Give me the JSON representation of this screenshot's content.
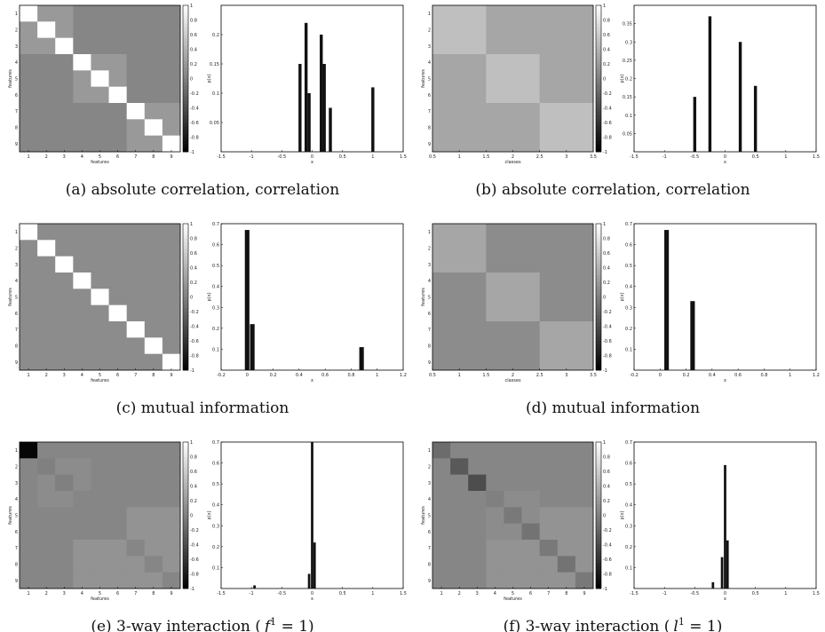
{
  "chart_data": [
    {
      "panel": "a",
      "caption": "(a) absolute correlation, correlation",
      "heatmap": {
        "type": "heatmap",
        "n": 9,
        "xlabel": "features",
        "ylabel": "features",
        "x_ticks": [
          "1",
          "2",
          "3",
          "4",
          "5",
          "6",
          "7",
          "8",
          "9"
        ],
        "y_ticks": [
          "1",
          "2",
          "3",
          "4",
          "5",
          "6",
          "7",
          "8",
          "9"
        ],
        "colorbar_ticks": [
          "1",
          "0.8",
          "0.6",
          "0.4",
          "0.2",
          "0",
          "-0.2",
          "-0.4",
          "-0.6",
          "-0.8",
          "-1"
        ],
        "clim": [
          -1,
          1
        ],
        "values": [
          [
            1,
            0.2,
            0.2,
            0.05,
            0.05,
            0.05,
            0.05,
            0.05,
            0.05
          ],
          [
            0.2,
            1,
            0.2,
            0.05,
            0.05,
            0.05,
            0.05,
            0.05,
            0.05
          ],
          [
            0.2,
            0.2,
            1,
            0.05,
            0.05,
            0.05,
            0.05,
            0.05,
            0.05
          ],
          [
            0.05,
            0.05,
            0.05,
            1,
            0.2,
            0.2,
            0.05,
            0.05,
            0.05
          ],
          [
            0.05,
            0.05,
            0.05,
            0.2,
            1,
            0.2,
            0.05,
            0.05,
            0.05
          ],
          [
            0.05,
            0.05,
            0.05,
            0.2,
            0.2,
            1,
            0.05,
            0.05,
            0.05
          ],
          [
            0.05,
            0.05,
            0.05,
            0.05,
            0.05,
            0.05,
            1,
            0.2,
            0.2
          ],
          [
            0.05,
            0.05,
            0.05,
            0.05,
            0.05,
            0.05,
            0.2,
            1,
            0.2
          ],
          [
            0.05,
            0.05,
            0.05,
            0.05,
            0.05,
            0.05,
            0.2,
            0.2,
            1
          ]
        ]
      },
      "histogram": {
        "type": "bar",
        "xlabel": "x",
        "ylabel": "p(x)",
        "xlim": [
          -1.5,
          1.5
        ],
        "ylim": [
          0,
          0.25
        ],
        "x_ticks": [
          "-1.5",
          "-1",
          "-0.5",
          "0",
          "0.5",
          "1",
          "1.5"
        ],
        "y_ticks": [
          "0.05",
          "0.1",
          "0.15",
          "0.2"
        ],
        "bar_width": 0.05,
        "x": [
          -0.2,
          -0.1,
          -0.05,
          0.15,
          0.2,
          0.3,
          1.0
        ],
        "values": [
          0.15,
          0.22,
          0.1,
          0.2,
          0.15,
          0.075,
          0.11
        ]
      }
    },
    {
      "panel": "b",
      "caption": "(b) absolute correlation, correlation",
      "heatmap": {
        "type": "heatmap",
        "n": 9,
        "xlabel": "classes",
        "ylabel": "features",
        "x_ticks": [
          "0.5",
          "1",
          "1.5",
          "2",
          "2.5",
          "3",
          "3.5"
        ],
        "y_ticks": [
          "1",
          "2",
          "3",
          "4",
          "5",
          "6",
          "7",
          "8",
          "9"
        ],
        "colorbar_ticks": [
          "1",
          "0.8",
          "0.6",
          "0.4",
          "0.2",
          "0",
          "-0.2",
          "-0.4",
          "-0.6",
          "-0.8",
          "-1"
        ],
        "clim": [
          -1,
          1
        ],
        "values": [
          [
            0.5,
            0.5,
            0.5,
            0.3,
            0.3,
            0.3,
            0.3,
            0.3,
            0.3
          ],
          [
            0.5,
            0.5,
            0.5,
            0.3,
            0.3,
            0.3,
            0.3,
            0.3,
            0.3
          ],
          [
            0.5,
            0.5,
            0.5,
            0.3,
            0.3,
            0.3,
            0.3,
            0.3,
            0.3
          ],
          [
            0.3,
            0.3,
            0.3,
            0.5,
            0.5,
            0.5,
            0.3,
            0.3,
            0.3
          ],
          [
            0.3,
            0.3,
            0.3,
            0.5,
            0.5,
            0.5,
            0.3,
            0.3,
            0.3
          ],
          [
            0.3,
            0.3,
            0.3,
            0.5,
            0.5,
            0.5,
            0.3,
            0.3,
            0.3
          ],
          [
            0.3,
            0.3,
            0.3,
            0.3,
            0.3,
            0.3,
            0.5,
            0.5,
            0.5
          ],
          [
            0.3,
            0.3,
            0.3,
            0.3,
            0.3,
            0.3,
            0.5,
            0.5,
            0.5
          ],
          [
            0.3,
            0.3,
            0.3,
            0.3,
            0.3,
            0.3,
            0.5,
            0.5,
            0.5
          ]
        ]
      },
      "histogram": {
        "type": "bar",
        "xlabel": "x",
        "ylabel": "p(x)",
        "xlim": [
          -1.5,
          1.5
        ],
        "ylim": [
          0,
          0.4
        ],
        "x_ticks": [
          "-1.5",
          "-1",
          "-0.5",
          "0",
          "0.5",
          "1",
          "1.5"
        ],
        "y_ticks": [
          "0.05",
          "0.1",
          "0.15",
          "0.2",
          "0.25",
          "0.3",
          "0.35"
        ],
        "bar_width": 0.05,
        "x": [
          -0.5,
          -0.25,
          0.25,
          0.5
        ],
        "values": [
          0.15,
          0.37,
          0.3,
          0.18
        ]
      }
    },
    {
      "panel": "c",
      "caption": "(c) mutual information",
      "heatmap": {
        "type": "heatmap",
        "n": 9,
        "xlabel": "features",
        "ylabel": "features",
        "x_ticks": [
          "1",
          "2",
          "3",
          "4",
          "5",
          "6",
          "7",
          "8",
          "9"
        ],
        "y_ticks": [
          "1",
          "2",
          "3",
          "4",
          "5",
          "6",
          "7",
          "8",
          "9"
        ],
        "colorbar_ticks": [
          "1",
          "0.8",
          "0.6",
          "0.4",
          "0.2",
          "0",
          "-0.2",
          "-0.4",
          "-0.6",
          "-0.8",
          "-1"
        ],
        "clim": [
          -1,
          1
        ],
        "values": [
          [
            1,
            0.1,
            0.1,
            0.1,
            0.1,
            0.1,
            0.1,
            0.1,
            0.1
          ],
          [
            0.1,
            1,
            0.1,
            0.1,
            0.1,
            0.1,
            0.1,
            0.1,
            0.1
          ],
          [
            0.1,
            0.1,
            1,
            0.1,
            0.1,
            0.1,
            0.1,
            0.1,
            0.1
          ],
          [
            0.1,
            0.1,
            0.1,
            1,
            0.1,
            0.1,
            0.1,
            0.1,
            0.1
          ],
          [
            0.1,
            0.1,
            0.1,
            0.1,
            1,
            0.1,
            0.1,
            0.1,
            0.1
          ],
          [
            0.1,
            0.1,
            0.1,
            0.1,
            0.1,
            1,
            0.1,
            0.1,
            0.1
          ],
          [
            0.1,
            0.1,
            0.1,
            0.1,
            0.1,
            0.1,
            1,
            0.1,
            0.1
          ],
          [
            0.1,
            0.1,
            0.1,
            0.1,
            0.1,
            0.1,
            0.1,
            1,
            0.1
          ],
          [
            0.1,
            0.1,
            0.1,
            0.1,
            0.1,
            0.1,
            0.1,
            0.1,
            1
          ]
        ]
      },
      "histogram": {
        "type": "bar",
        "xlabel": "x",
        "ylabel": "p(x)",
        "xlim": [
          -0.2,
          1.2
        ],
        "ylim": [
          0,
          0.7
        ],
        "x_ticks": [
          "-0.2",
          "0",
          "0.2",
          "0.4",
          "0.6",
          "0.8",
          "1",
          "1.2"
        ],
        "y_ticks": [
          "0.1",
          "0.2",
          "0.3",
          "0.4",
          "0.5",
          "0.6",
          "0.7"
        ],
        "bar_width": 0.035,
        "x": [
          0.0,
          0.04,
          0.88
        ],
        "values": [
          0.67,
          0.22,
          0.11
        ]
      }
    },
    {
      "panel": "d",
      "caption": "(d) mutual information",
      "heatmap": {
        "type": "heatmap",
        "n": 9,
        "xlabel": "classes",
        "ylabel": "features",
        "x_ticks": [
          "0.5",
          "1",
          "1.5",
          "2",
          "2.5",
          "3",
          "3.5"
        ],
        "y_ticks": [
          "1",
          "2",
          "3",
          "4",
          "5",
          "6",
          "7",
          "8",
          "9"
        ],
        "colorbar_ticks": [
          "1",
          "0.8",
          "0.6",
          "0.4",
          "0.2",
          "0",
          "-0.2",
          "-0.4",
          "-0.6",
          "-0.8",
          "-1"
        ],
        "clim": [
          -1,
          1
        ],
        "values": [
          [
            0.3,
            0.3,
            0.3,
            0.1,
            0.1,
            0.1,
            0.1,
            0.1,
            0.1
          ],
          [
            0.3,
            0.3,
            0.3,
            0.1,
            0.1,
            0.1,
            0.1,
            0.1,
            0.1
          ],
          [
            0.3,
            0.3,
            0.3,
            0.1,
            0.1,
            0.1,
            0.1,
            0.1,
            0.1
          ],
          [
            0.1,
            0.1,
            0.1,
            0.3,
            0.3,
            0.3,
            0.1,
            0.1,
            0.1
          ],
          [
            0.1,
            0.1,
            0.1,
            0.3,
            0.3,
            0.3,
            0.1,
            0.1,
            0.1
          ],
          [
            0.1,
            0.1,
            0.1,
            0.3,
            0.3,
            0.3,
            0.1,
            0.1,
            0.1
          ],
          [
            0.1,
            0.1,
            0.1,
            0.1,
            0.1,
            0.1,
            0.3,
            0.3,
            0.3
          ],
          [
            0.1,
            0.1,
            0.1,
            0.1,
            0.1,
            0.1,
            0.3,
            0.3,
            0.3
          ],
          [
            0.1,
            0.1,
            0.1,
            0.1,
            0.1,
            0.1,
            0.3,
            0.3,
            0.3
          ]
        ]
      },
      "histogram": {
        "type": "bar",
        "xlabel": "x",
        "ylabel": "p(x)",
        "xlim": [
          -0.2,
          1.2
        ],
        "ylim": [
          0,
          0.7
        ],
        "x_ticks": [
          "-0.2",
          "0",
          "0.2",
          "0.4",
          "0.6",
          "0.8",
          "1",
          "1.2"
        ],
        "y_ticks": [
          "0.1",
          "0.2",
          "0.3",
          "0.4",
          "0.5",
          "0.6",
          "0.7"
        ],
        "bar_width": 0.035,
        "x": [
          0.05,
          0.25
        ],
        "values": [
          0.67,
          0.33
        ]
      }
    },
    {
      "panel": "e",
      "caption": "(e) 3-way interaction (",
      "caption_italic": "f",
      "caption_sup": "1",
      "caption_tail": " = 1)",
      "heatmap": {
        "type": "heatmap",
        "n": 9,
        "xlabel": "features",
        "ylabel": "features",
        "x_ticks": [
          "1",
          "2",
          "3",
          "4",
          "5",
          "6",
          "7",
          "8",
          "9"
        ],
        "y_ticks": [
          "1",
          "2",
          "3",
          "4",
          "5",
          "6",
          "7",
          "8",
          "9"
        ],
        "colorbar_ticks": [
          "1",
          "0.8",
          "0.6",
          "0.4",
          "0.2",
          "0",
          "-0.2",
          "-0.4",
          "-0.6",
          "-0.8",
          "-1"
        ],
        "clim": [
          -1,
          1
        ],
        "values": [
          [
            -0.95,
            0.05,
            0.05,
            0.05,
            0.05,
            0.05,
            0.05,
            0.05,
            0.05
          ],
          [
            0.05,
            0.0,
            0.1,
            0.1,
            0.05,
            0.05,
            0.05,
            0.05,
            0.05
          ],
          [
            0.05,
            0.1,
            0.0,
            0.1,
            0.05,
            0.05,
            0.05,
            0.05,
            0.05
          ],
          [
            0.05,
            0.1,
            0.1,
            0.05,
            0.05,
            0.05,
            0.05,
            0.05,
            0.05
          ],
          [
            0.05,
            0.05,
            0.05,
            0.05,
            0.05,
            0.05,
            0.15,
            0.15,
            0.15
          ],
          [
            0.05,
            0.05,
            0.05,
            0.05,
            0.05,
            0.05,
            0.15,
            0.15,
            0.15
          ],
          [
            0.05,
            0.05,
            0.05,
            0.15,
            0.15,
            0.15,
            0.05,
            0.15,
            0.15
          ],
          [
            0.05,
            0.05,
            0.05,
            0.15,
            0.15,
            0.15,
            0.15,
            0.05,
            0.15
          ],
          [
            0.05,
            0.05,
            0.05,
            0.15,
            0.15,
            0.15,
            0.15,
            0.15,
            0.05
          ]
        ]
      },
      "histogram": {
        "type": "bar",
        "xlabel": "x",
        "ylabel": "p(x)",
        "xlim": [
          -1.5,
          1.5
        ],
        "ylim": [
          0,
          0.7
        ],
        "x_ticks": [
          "-1.5",
          "-1",
          "-0.5",
          "0",
          "0.5",
          "1",
          "1.5"
        ],
        "y_ticks": [
          "0.1",
          "0.2",
          "0.3",
          "0.4",
          "0.5",
          "0.6",
          "0.7"
        ],
        "bar_width": 0.04,
        "x": [
          -0.95,
          -0.05,
          0.0,
          0.04
        ],
        "values": [
          0.015,
          0.07,
          0.7,
          0.22
        ]
      }
    },
    {
      "panel": "f",
      "caption": "(f) 3-way interaction (",
      "caption_italic": "l",
      "caption_sup": "1",
      "caption_tail": " = 1)",
      "heatmap": {
        "type": "heatmap",
        "n": 9,
        "xlabel": "features",
        "ylabel": "features",
        "x_ticks": [
          "1",
          "2",
          "3",
          "4",
          "5",
          "6",
          "7",
          "8",
          "9"
        ],
        "y_ticks": [
          "1",
          "2",
          "3",
          "4",
          "5",
          "6",
          "7",
          "8",
          "9"
        ],
        "colorbar_ticks": [
          "1",
          "0.8",
          "0.6",
          "0.4",
          "0.2",
          "0",
          "-0.2",
          "-0.4",
          "-0.6",
          "-0.8",
          "-1"
        ],
        "clim": [
          -1,
          1
        ],
        "values": [
          [
            -0.15,
            0.05,
            0.05,
            0.05,
            0.05,
            0.05,
            0.05,
            0.05,
            0.05
          ],
          [
            0.05,
            -0.3,
            0.05,
            0.05,
            0.05,
            0.05,
            0.05,
            0.05,
            0.05
          ],
          [
            0.05,
            0.05,
            -0.4,
            0.05,
            0.05,
            0.05,
            0.05,
            0.05,
            0.05
          ],
          [
            0.05,
            0.05,
            0.05,
            0.0,
            0.1,
            0.1,
            0.05,
            0.05,
            0.05
          ],
          [
            0.05,
            0.05,
            0.05,
            0.1,
            -0.05,
            0.1,
            0.15,
            0.15,
            0.15
          ],
          [
            0.05,
            0.05,
            0.05,
            0.1,
            0.1,
            -0.1,
            0.15,
            0.15,
            0.15
          ],
          [
            0.05,
            0.05,
            0.05,
            0.15,
            0.15,
            0.15,
            -0.05,
            0.15,
            0.15
          ],
          [
            0.05,
            0.05,
            0.05,
            0.15,
            0.15,
            0.15,
            0.15,
            -0.1,
            0.15
          ],
          [
            0.05,
            0.05,
            0.05,
            0.15,
            0.15,
            0.15,
            0.15,
            0.15,
            -0.05
          ]
        ]
      },
      "histogram": {
        "type": "bar",
        "xlabel": "x",
        "ylabel": "p(x)",
        "xlim": [
          -1.5,
          1.5
        ],
        "ylim": [
          0,
          0.7
        ],
        "x_ticks": [
          "-1.5",
          "-1",
          "-0.5",
          "0",
          "0.5",
          "1",
          "1.5"
        ],
        "y_ticks": [
          "0.1",
          "0.2",
          "0.3",
          "0.4",
          "0.5",
          "0.6",
          "0.7"
        ],
        "bar_width": 0.04,
        "x": [
          -0.2,
          -0.05,
          0.0,
          0.04
        ],
        "values": [
          0.03,
          0.15,
          0.59,
          0.23
        ]
      }
    }
  ]
}
